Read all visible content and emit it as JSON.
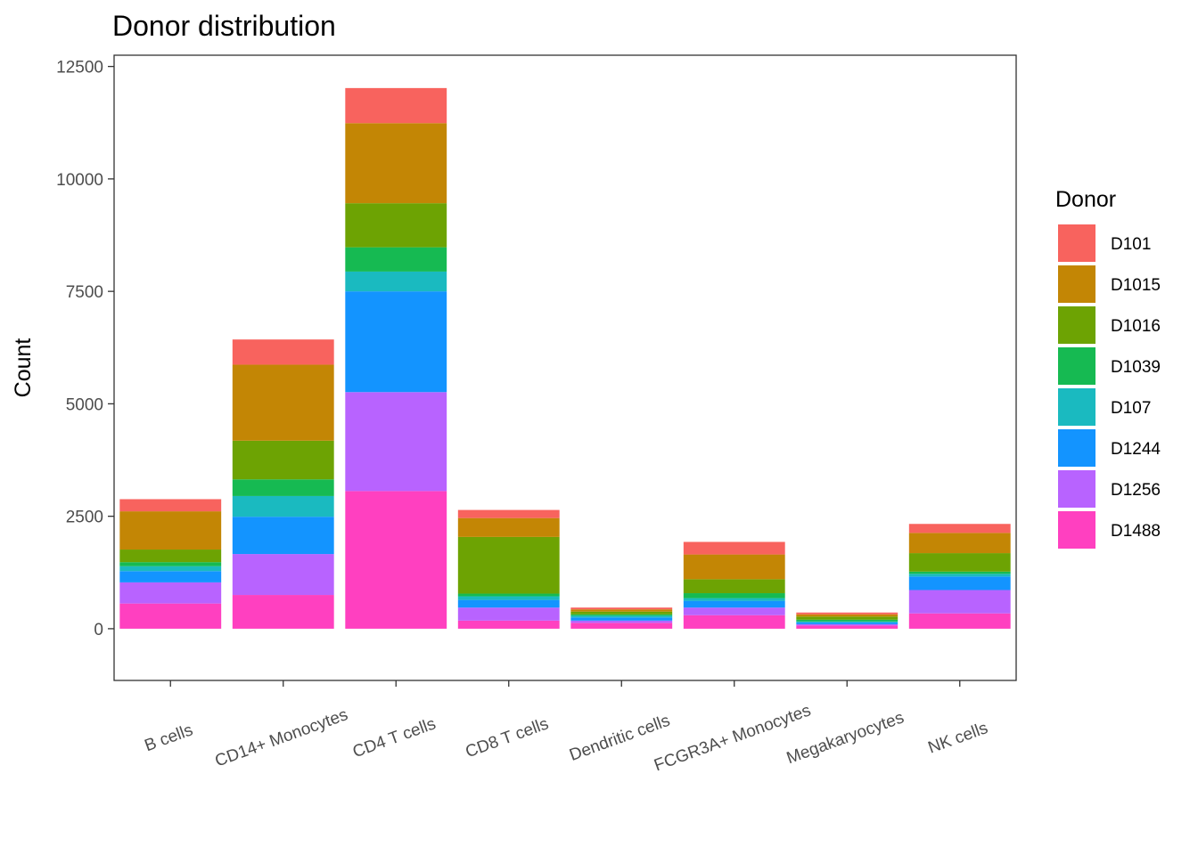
{
  "chart_data": {
    "type": "bar",
    "stacked": true,
    "title": "Donor distribution",
    "xlabel": "",
    "ylabel": "Count",
    "ylim": [
      -1150,
      12750
    ],
    "yticks": [
      0,
      2500,
      5000,
      7500,
      10000,
      12500
    ],
    "ytick_labels": [
      "0",
      "2500",
      "5000",
      "7500",
      "10000",
      "12500"
    ],
    "grid": false,
    "legend": {
      "title": "Donor",
      "position": "right"
    },
    "categories": [
      "B cells",
      "CD14+ Monocytes",
      "CD4 T cells",
      "CD8 T cells",
      "Dendritic cells",
      "FCGR3A+ Monocytes",
      "Megakaryocytes",
      "NK cells"
    ],
    "series": [
      {
        "name": "D1488",
        "color": "#FF40C0",
        "values": [
          560,
          750,
          3060,
          180,
          130,
          300,
          70,
          340
        ]
      },
      {
        "name": "D1256",
        "color": "#B863FF",
        "values": [
          470,
          910,
          2200,
          290,
          50,
          170,
          30,
          520
        ]
      },
      {
        "name": "D1244",
        "color": "#1394FF",
        "values": [
          250,
          830,
          2240,
          170,
          70,
          150,
          40,
          300
        ]
      },
      {
        "name": "D107",
        "color": "#1ABAC0",
        "values": [
          110,
          460,
          440,
          80,
          40,
          60,
          20,
          60
        ]
      },
      {
        "name": "D1039",
        "color": "#16BA52",
        "values": [
          90,
          370,
          540,
          60,
          30,
          110,
          40,
          50
        ]
      },
      {
        "name": "D1016",
        "color": "#6DA303",
        "values": [
          280,
          860,
          980,
          1260,
          60,
          310,
          70,
          410
        ]
      },
      {
        "name": "D1015",
        "color": "#C38605",
        "values": [
          850,
          1690,
          1780,
          420,
          50,
          550,
          50,
          450
        ]
      },
      {
        "name": "D101",
        "color": "#F8635E",
        "values": [
          270,
          560,
          780,
          180,
          40,
          280,
          40,
          200
        ]
      }
    ]
  }
}
